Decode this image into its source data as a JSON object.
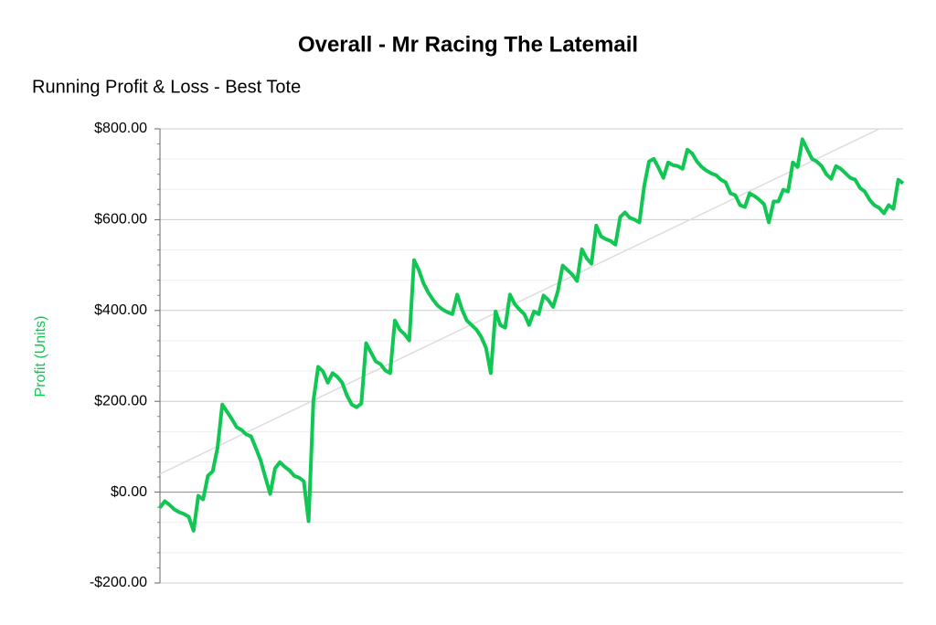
{
  "chart_data": {
    "type": "line",
    "title": "Overall - Mr Racing The Latemail",
    "subtitle": "Running Profit & Loss - Best Tote",
    "ylabel": "Profit (Units)",
    "color": "#10c754",
    "trend_color": "#dddddd",
    "grid": true,
    "ylim": [
      -200,
      800
    ],
    "yticks": [
      {
        "value": -200,
        "label": "-$200.00"
      },
      {
        "value": 0,
        "label": "$0.00"
      },
      {
        "value": 200,
        "label": "$200.00"
      },
      {
        "value": 400,
        "label": "$400.00"
      },
      {
        "value": 600,
        "label": "$600.00"
      },
      {
        "value": 800,
        "label": "$800.00"
      }
    ],
    "values": [
      -34,
      -20,
      -28,
      -38,
      -44,
      -48,
      -54,
      -85,
      -8,
      -16,
      36,
      46,
      97,
      193,
      177,
      161,
      143,
      137,
      127,
      123,
      97,
      70,
      32,
      -4,
      52,
      66,
      56,
      48,
      36,
      32,
      24,
      -64,
      201,
      276,
      266,
      241,
      262,
      254,
      241,
      213,
      193,
      187,
      195,
      328,
      308,
      288,
      282,
      268,
      262,
      378,
      358,
      348,
      334,
      511,
      489,
      459,
      439,
      423,
      410,
      402,
      396,
      392,
      435,
      402,
      378,
      368,
      358,
      342,
      318,
      262,
      398,
      368,
      362,
      435,
      414,
      402,
      392,
      368,
      398,
      392,
      433,
      423,
      408,
      443,
      499,
      489,
      479,
      465,
      535,
      515,
      503,
      587,
      563,
      557,
      553,
      545,
      606,
      616,
      604,
      600,
      594,
      674,
      728,
      734,
      714,
      692,
      726,
      720,
      718,
      712,
      754,
      746,
      728,
      716,
      708,
      702,
      698,
      688,
      682,
      658,
      654,
      632,
      628,
      658,
      652,
      644,
      634,
      594,
      640,
      640,
      666,
      662,
      726,
      716,
      777,
      755,
      734,
      728,
      718,
      700,
      690,
      718,
      712,
      702,
      692,
      688,
      670,
      662,
      644,
      632,
      626,
      614,
      632,
      624,
      688,
      680
    ],
    "trend_values": [
      40,
      825
    ]
  }
}
